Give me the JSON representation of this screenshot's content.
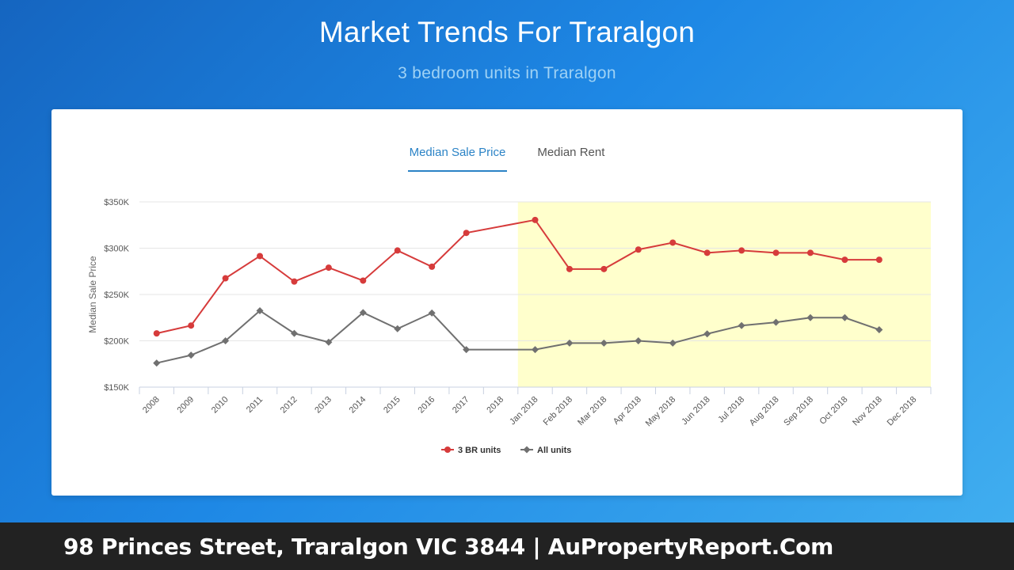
{
  "page": {
    "title": "Market Trends For Traralgon",
    "subtitle": "3 bedroom units in Traralgon"
  },
  "tabs": [
    {
      "label": "Median Sale Price",
      "active": true
    },
    {
      "label": "Median Rent",
      "active": false
    }
  ],
  "footer": {
    "text": "98 Princes Street, Traralgon VIC 3844 | AuPropertyReport.Com"
  },
  "colors": {
    "series_3br": "#d63b3b",
    "series_all": "#707070",
    "highlight": "#ffffcc",
    "tab_active": "#2b83c6"
  },
  "chart_data": {
    "type": "line",
    "ylabel": "Median Sale Price",
    "xlabel": "",
    "ylim": [
      150000,
      350000
    ],
    "yticks": [
      150000,
      200000,
      250000,
      300000,
      350000
    ],
    "ytick_labels": [
      "$150K",
      "$200K",
      "$250K",
      "$300K",
      "$350K"
    ],
    "grid": true,
    "legend_position": "bottom-center",
    "highlight_range": [
      "Jan 2018",
      "Dec 2018"
    ],
    "categories": [
      "2008",
      "2009",
      "2010",
      "2011",
      "2012",
      "2013",
      "2014",
      "2015",
      "2016",
      "2017",
      "2018",
      "Jan 2018",
      "Feb 2018",
      "Mar 2018",
      "Apr 2018",
      "May 2018",
      "Jun 2018",
      "Jul 2018",
      "Aug 2018",
      "Sep 2018",
      "Oct 2018",
      "Nov 2018",
      "Dec 2018"
    ],
    "series": [
      {
        "name": "3 BR units",
        "color": "#d63b3b",
        "marker": "circle",
        "values": [
          208000,
          216500,
          267500,
          291500,
          264000,
          279000,
          265000,
          297500,
          280000,
          316500,
          null,
          330500,
          277500,
          277500,
          298500,
          306000,
          295000,
          297500,
          295000,
          295000,
          287500,
          287500,
          null
        ]
      },
      {
        "name": "All units",
        "color": "#707070",
        "marker": "diamond",
        "values": [
          176000,
          184500,
          200000,
          232500,
          208000,
          198500,
          230500,
          213000,
          230000,
          190500,
          null,
          190500,
          197500,
          197500,
          200000,
          197500,
          207500,
          216500,
          220000,
          225000,
          225000,
          212000,
          null
        ]
      }
    ]
  }
}
